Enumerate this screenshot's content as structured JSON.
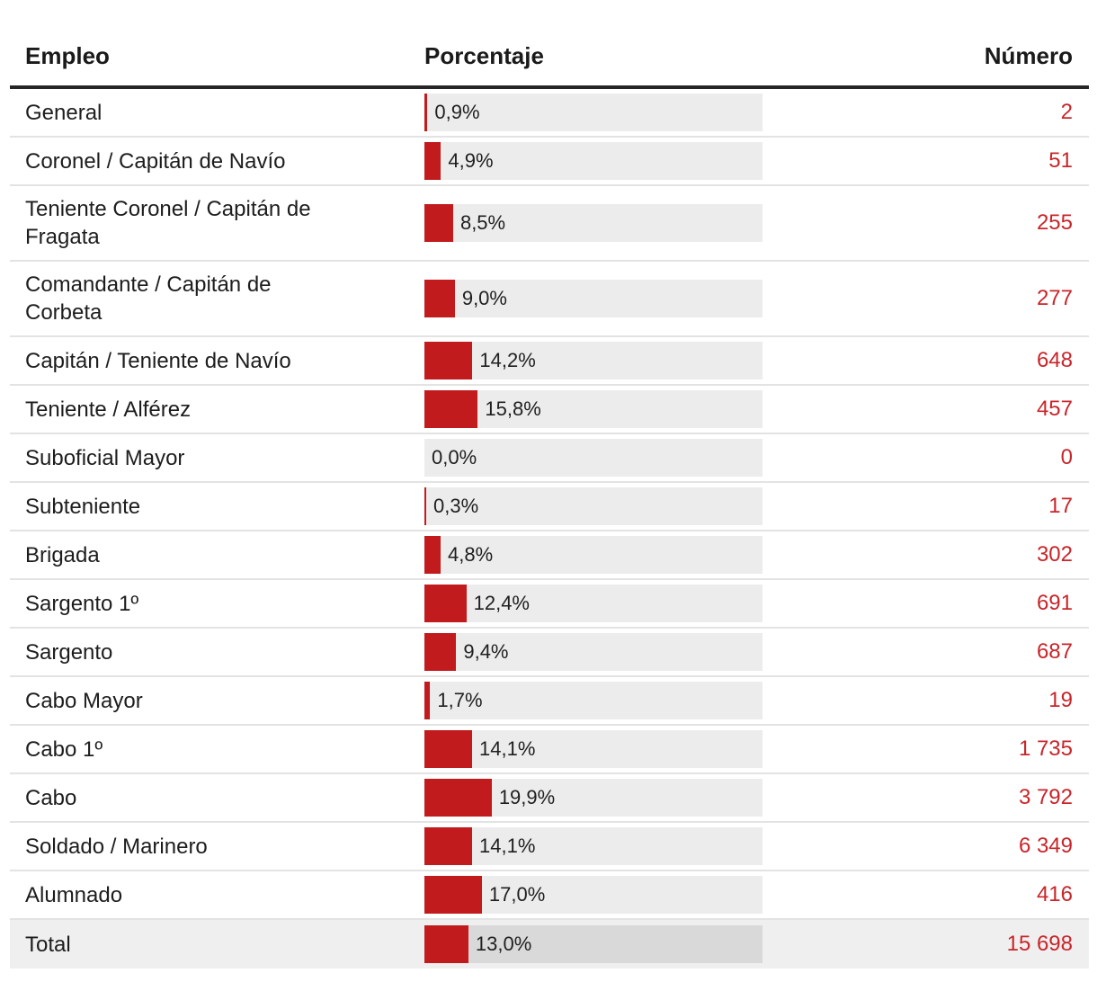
{
  "header": {
    "col_empleo": "Empleo",
    "col_porcentaje": "Porcentaje",
    "col_numero": "Número"
  },
  "colors": {
    "bar_red": "#c21b1e",
    "number_red": "#c9252a",
    "track_gray": "#ececec",
    "total_row_bg": "#efefef",
    "total_track_gray": "#d9d9d9",
    "header_rule": "#262626",
    "row_separator": "#e3e3e3"
  },
  "chart_data": {
    "type": "bar",
    "orientation": "horizontal",
    "title": "",
    "xlabel": "",
    "ylabel": "",
    "xlim": [
      0,
      100
    ],
    "grid": false,
    "legend_position": "none",
    "bar_color": "#c21b1e",
    "categories": [
      "General",
      "Coronel / Capitán de Navío",
      "Teniente Coronel / Capitán de Fragata",
      "Comandante / Capitán de Corbeta",
      "Capitán / Teniente de Navío",
      "Teniente / Alférez",
      "Suboficial Mayor",
      "Subteniente",
      "Brigada",
      "Sargento 1º",
      "Sargento",
      "Cabo Mayor",
      "Cabo 1º",
      "Cabo",
      "Soldado / Marinero",
      "Alumnado",
      "Total"
    ],
    "series": [
      {
        "name": "Porcentaje",
        "values": [
          0.9,
          4.9,
          8.5,
          9.0,
          14.2,
          15.8,
          0.0,
          0.3,
          4.8,
          12.4,
          9.4,
          1.7,
          14.1,
          19.9,
          14.1,
          17.0,
          13.0
        ]
      },
      {
        "name": "Número",
        "values": [
          2,
          51,
          255,
          277,
          648,
          457,
          0,
          17,
          302,
          691,
          687,
          19,
          1735,
          3792,
          6349,
          416,
          15698
        ]
      }
    ]
  },
  "table": {
    "rows": [
      {
        "empleo": "General",
        "pct": 0.9,
        "pct_label": "0,9%",
        "numero": "2",
        "total": false
      },
      {
        "empleo": "Coronel / Capitán de Navío",
        "pct": 4.9,
        "pct_label": "4,9%",
        "numero": "51",
        "total": false
      },
      {
        "empleo": "Teniente Coronel / Capitán de\nFragata",
        "pct": 8.5,
        "pct_label": "8,5%",
        "numero": "255",
        "total": false
      },
      {
        "empleo": "Comandante / Capitán de\nCorbeta",
        "pct": 9.0,
        "pct_label": "9,0%",
        "numero": "277",
        "total": false
      },
      {
        "empleo": "Capitán / Teniente de Navío",
        "pct": 14.2,
        "pct_label": "14,2%",
        "numero": "648",
        "total": false
      },
      {
        "empleo": "Teniente / Alférez",
        "pct": 15.8,
        "pct_label": "15,8%",
        "numero": "457",
        "total": false
      },
      {
        "empleo": "Suboficial Mayor",
        "pct": 0.0,
        "pct_label": "0,0%",
        "numero": "0",
        "total": false
      },
      {
        "empleo": "Subteniente",
        "pct": 0.3,
        "pct_label": "0,3%",
        "numero": "17",
        "total": false
      },
      {
        "empleo": "Brigada",
        "pct": 4.8,
        "pct_label": "4,8%",
        "numero": "302",
        "total": false
      },
      {
        "empleo": "Sargento 1º",
        "pct": 12.4,
        "pct_label": "12,4%",
        "numero": "691",
        "total": false
      },
      {
        "empleo": "Sargento",
        "pct": 9.4,
        "pct_label": "9,4%",
        "numero": "687",
        "total": false
      },
      {
        "empleo": "Cabo Mayor",
        "pct": 1.7,
        "pct_label": "1,7%",
        "numero": "19",
        "total": false
      },
      {
        "empleo": "Cabo 1º",
        "pct": 14.1,
        "pct_label": "14,1%",
        "numero": "1 735",
        "total": false
      },
      {
        "empleo": "Cabo",
        "pct": 19.9,
        "pct_label": "19,9%",
        "numero": "3 792",
        "total": false
      },
      {
        "empleo": "Soldado / Marinero",
        "pct": 14.1,
        "pct_label": "14,1%",
        "numero": "6 349",
        "total": false
      },
      {
        "empleo": "Alumnado",
        "pct": 17.0,
        "pct_label": "17,0%",
        "numero": "416",
        "total": false
      },
      {
        "empleo": "Total",
        "pct": 13.0,
        "pct_label": "13,0%",
        "numero": "15 698",
        "total": true
      }
    ]
  }
}
